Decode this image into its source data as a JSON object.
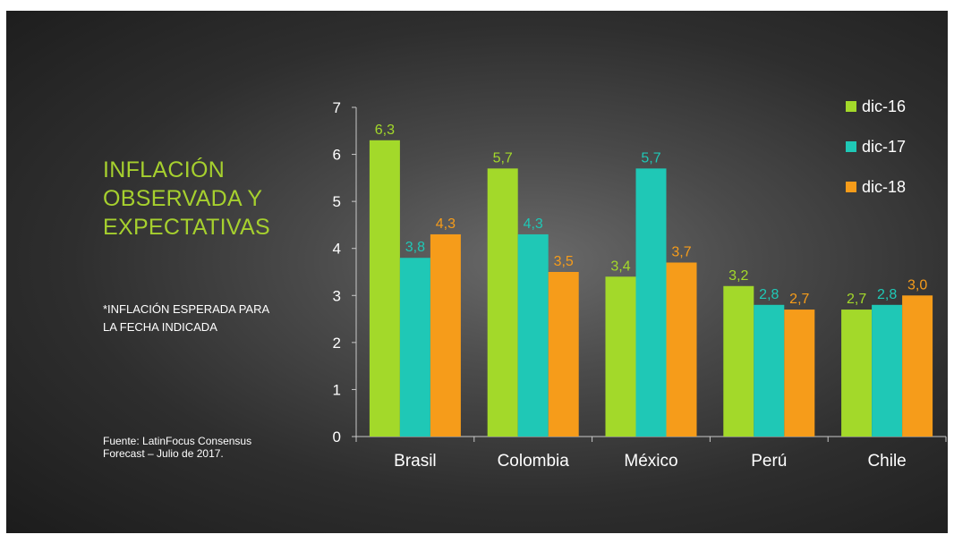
{
  "slide": {
    "title_lines": [
      "INFLACIÓN",
      "OBSERVADA Y",
      "EXPECTATIVAS"
    ],
    "note_lines": [
      "*INFLACIÓN ESPERADA PARA",
      "LA FECHA INDICADA"
    ],
    "source_lines": [
      "Fuente: LatinFocus Consensus",
      "Forecast – Julio de 2017."
    ]
  },
  "colors": {
    "dic-16": "#a3d92a",
    "dic-17": "#1fc8b6",
    "dic-18": "#f69c1a",
    "axis": "#c8c8c8",
    "text": "#ffffff"
  },
  "chart_data": {
    "type": "bar",
    "categories": [
      "Brasil",
      "Colombia",
      "México",
      "Perú",
      "Chile"
    ],
    "series": [
      {
        "name": "dic-16",
        "values": [
          6.3,
          5.7,
          3.4,
          3.2,
          2.7
        ],
        "labels": [
          "6,3",
          "5,7",
          "3,4",
          "3,2",
          "2,7"
        ]
      },
      {
        "name": "dic-17",
        "values": [
          3.8,
          4.3,
          5.7,
          2.8,
          2.8
        ],
        "labels": [
          "3,8",
          "4,3",
          "5,7",
          "2,8",
          "2,8"
        ]
      },
      {
        "name": "dic-18",
        "values": [
          4.3,
          3.5,
          3.7,
          2.7,
          3.0
        ],
        "labels": [
          "4,3",
          "3,5",
          "3,7",
          "2,7",
          "3,0"
        ]
      }
    ],
    "ylim": [
      0,
      7
    ],
    "yticks": [
      "0",
      "1",
      "2",
      "3",
      "4",
      "5",
      "6",
      "7"
    ],
    "title": "",
    "xlabel": "",
    "ylabel": "",
    "grid": false,
    "legend_position": "top-right"
  }
}
